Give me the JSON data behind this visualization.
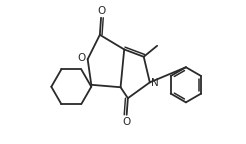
{
  "bg_color": "#ffffff",
  "line_color": "#2a2a2a",
  "line_width": 1.3,
  "figsize": [
    2.46,
    1.44
  ],
  "dpi": 100,
  "xlim": [
    0,
    10
  ],
  "ylim": [
    0,
    5.85
  ]
}
